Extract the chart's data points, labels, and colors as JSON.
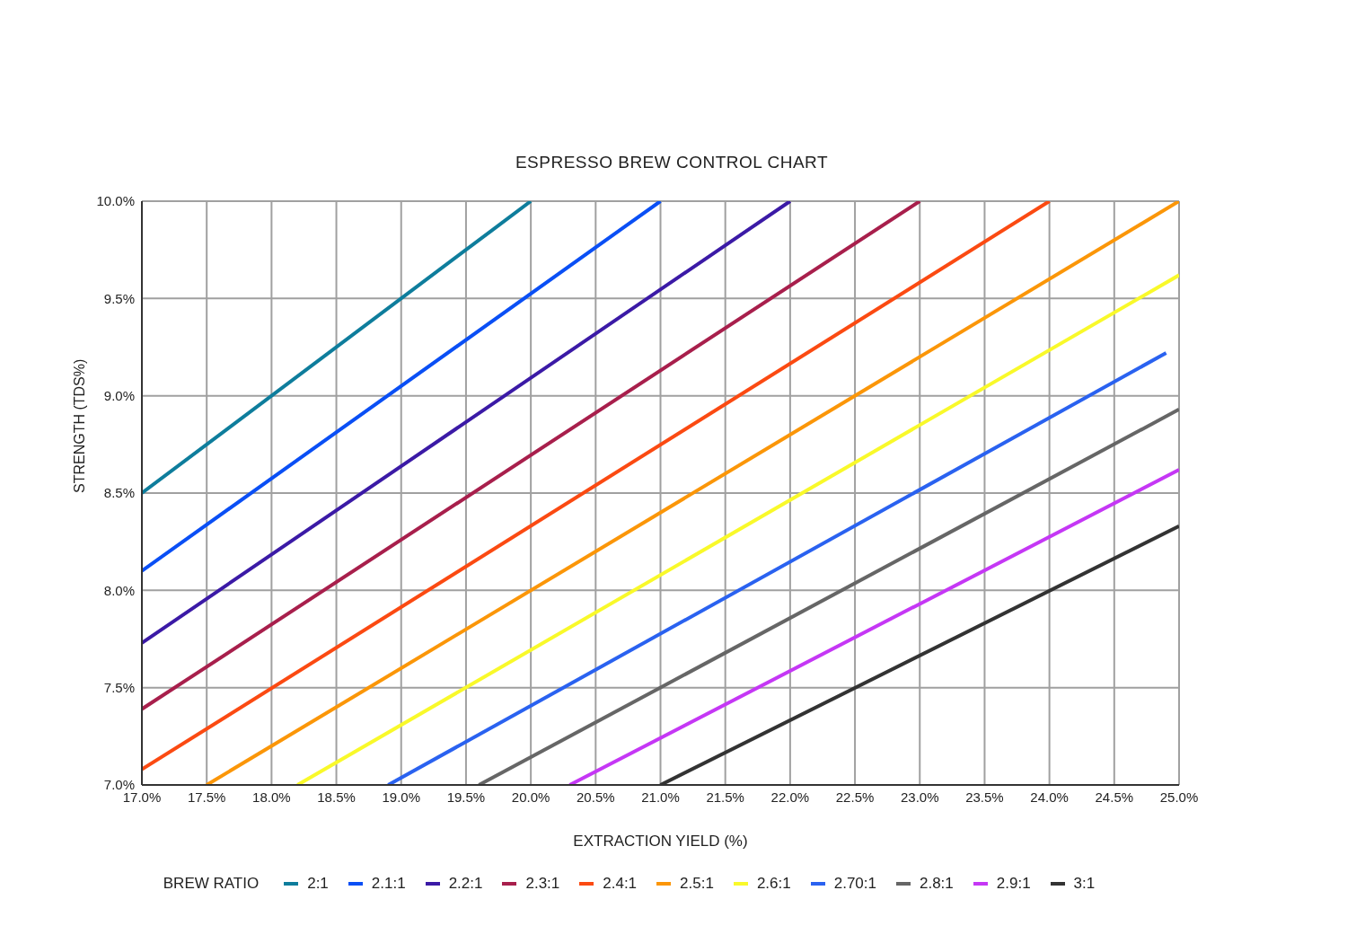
{
  "chart_data": {
    "type": "line",
    "title": "ESPRESSO BREW CONTROL CHART",
    "xlabel": "EXTRACTION YIELD (%)",
    "ylabel": "STRENGTH (TDS%)",
    "legend_title": "BREW RATIO",
    "legend": "bottom",
    "grid": true,
    "marker": "none",
    "line_style": "solid",
    "xlim": [
      17,
      25
    ],
    "ylim": [
      7,
      10
    ],
    "xticks": [
      {
        "value": 17,
        "label": "17.0%"
      },
      {
        "value": 17.5,
        "label": "17.5%"
      },
      {
        "value": 18,
        "label": "18.0%"
      },
      {
        "value": 18.5,
        "label": "18.5%"
      },
      {
        "value": 19,
        "label": "19.0%"
      },
      {
        "value": 19.5,
        "label": "19.5%"
      },
      {
        "value": 20,
        "label": "20.0%"
      },
      {
        "value": 20.5,
        "label": "20.5%"
      },
      {
        "value": 21,
        "label": "21.0%"
      },
      {
        "value": 21.5,
        "label": "21.5%"
      },
      {
        "value": 22,
        "label": "22.0%"
      },
      {
        "value": 22.5,
        "label": "22.5%"
      },
      {
        "value": 23,
        "label": "23.0%"
      },
      {
        "value": 23.5,
        "label": "23.5%"
      },
      {
        "value": 24,
        "label": "24.0%"
      },
      {
        "value": 24.5,
        "label": "24.5%"
      },
      {
        "value": 25,
        "label": "25.0%"
      }
    ],
    "yticks": [
      {
        "value": 7,
        "label": "7.0%"
      },
      {
        "value": 7.5,
        "label": "7.5%"
      },
      {
        "value": 8,
        "label": "8.0%"
      },
      {
        "value": 8.5,
        "label": "8.5%"
      },
      {
        "value": 9,
        "label": "9.0%"
      },
      {
        "value": 9.5,
        "label": "9.5%"
      },
      {
        "value": 10,
        "label": "10.0%"
      }
    ],
    "series": [
      {
        "name": "2:1",
        "color": "#0e7d9c",
        "x": [
          17,
          20
        ],
        "values": [
          8.5,
          10
        ]
      },
      {
        "name": "2.1:1",
        "color": "#0a4ff5",
        "x": [
          17,
          21
        ],
        "values": [
          8.1,
          10
        ]
      },
      {
        "name": "2.2:1",
        "color": "#3b1aa6",
        "x": [
          17,
          22
        ],
        "values": [
          7.73,
          10
        ]
      },
      {
        "name": "2.3:1",
        "color": "#a81f4c",
        "x": [
          17,
          23
        ],
        "values": [
          7.39,
          10
        ]
      },
      {
        "name": "2.4:1",
        "color": "#fb4a12",
        "x": [
          17,
          24
        ],
        "values": [
          7.08,
          10
        ]
      },
      {
        "name": "2.5:1",
        "color": "#fb9608",
        "x": [
          17.5,
          25
        ],
        "values": [
          7,
          10
        ]
      },
      {
        "name": "2.6:1",
        "color": "#f9f92a",
        "x": [
          18.2,
          25
        ],
        "values": [
          7,
          9.62
        ]
      },
      {
        "name": "2.70:1",
        "color": "#2a62f0",
        "x": [
          18.9,
          24.9
        ],
        "values": [
          7,
          9.22
        ]
      },
      {
        "name": "2.8:1",
        "color": "#666666",
        "x": [
          19.6,
          25
        ],
        "values": [
          7,
          8.93
        ]
      },
      {
        "name": "2.9:1",
        "color": "#c537f5",
        "x": [
          20.3,
          25
        ],
        "values": [
          7,
          8.62
        ]
      },
      {
        "name": "3:1",
        "color": "#333333",
        "x": [
          21,
          25
        ],
        "values": [
          7,
          8.33
        ]
      }
    ]
  }
}
